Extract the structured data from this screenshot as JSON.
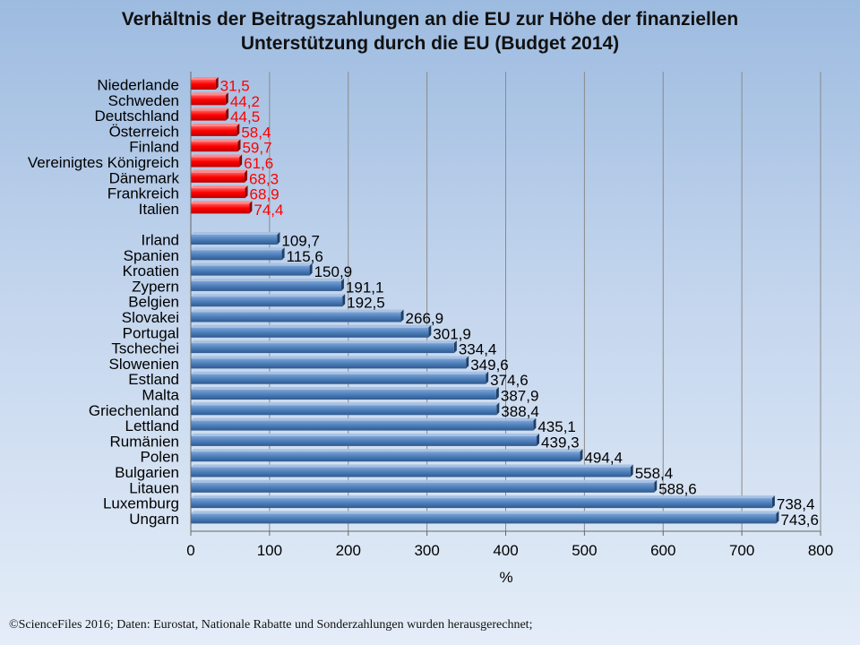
{
  "title_line1": "Verhältnis der Beitragszahlungen an die EU zur Höhe der finanziellen",
  "title_line2": "Unterstützung durch die EU (Budget 2014)",
  "footer": "©ScienceFiles 2016; Daten: Eurostat, Nationale Rabatte und Sonderzahlungen wurden herausgerechnet;",
  "colors": {
    "net_payer": "#ff0000",
    "net_recipient": "#4f81bd",
    "net_payer_label": "#ff0000",
    "net_recipient_label": "#000000"
  },
  "chart_data": {
    "type": "bar",
    "orientation": "horizontal",
    "title": "Verhältnis der Beitragszahlungen an die EU zur Höhe der finanziellen Unterstützung durch die EU (Budget 2014)",
    "xlabel": "%",
    "ylabel": "",
    "xlim": [
      0,
      800
    ],
    "xticks": [
      0,
      100,
      200,
      300,
      400,
      500,
      600,
      700,
      800
    ],
    "xtick_labels": [
      "0",
      "100",
      "200",
      "300",
      "400",
      "500",
      "600",
      "700",
      "800"
    ],
    "grid": "vertical",
    "groups": [
      {
        "color": "#ff0000",
        "categories": [
          "Niederlande",
          "Schweden",
          "Deutschland",
          "Österreich",
          "Finland",
          "Vereinigtes Königreich",
          "Dänemark",
          "Frankreich",
          "Italien"
        ],
        "values": [
          31.5,
          44.2,
          44.5,
          58.4,
          59.7,
          61.6,
          68.3,
          68.9,
          74.4
        ],
        "value_labels": [
          "31,5",
          "44,2",
          "44,5",
          "58,4",
          "59,7",
          "61,6",
          "68,3",
          "68,9",
          "74,4"
        ]
      },
      {
        "color": "#4f81bd",
        "categories": [
          "Irland",
          "Spanien",
          "Kroatien",
          "Zypern",
          "Belgien",
          "Slovakei",
          "Portugal",
          "Tschechei",
          "Slowenien",
          "Estland",
          "Malta",
          "Griechenland",
          "Lettland",
          "Rumänien",
          "Polen",
          "Bulgarien",
          "Litauen",
          "Luxemburg",
          "Ungarn"
        ],
        "values": [
          109.7,
          115.6,
          150.9,
          191.1,
          192.5,
          266.9,
          301.9,
          334.4,
          349.6,
          374.6,
          387.9,
          388.4,
          435.1,
          439.3,
          494.4,
          558.4,
          588.6,
          738.4,
          743.6
        ],
        "value_labels": [
          "109,7",
          "115,6",
          "150,9",
          "191,1",
          "192,5",
          "266,9",
          "301,9",
          "334,4",
          "349,6",
          "374,6",
          "387,9",
          "388,4",
          "435,1",
          "439,3",
          "494,4",
          "558,4",
          "588,6",
          "738,4",
          "743,6"
        ]
      }
    ]
  }
}
